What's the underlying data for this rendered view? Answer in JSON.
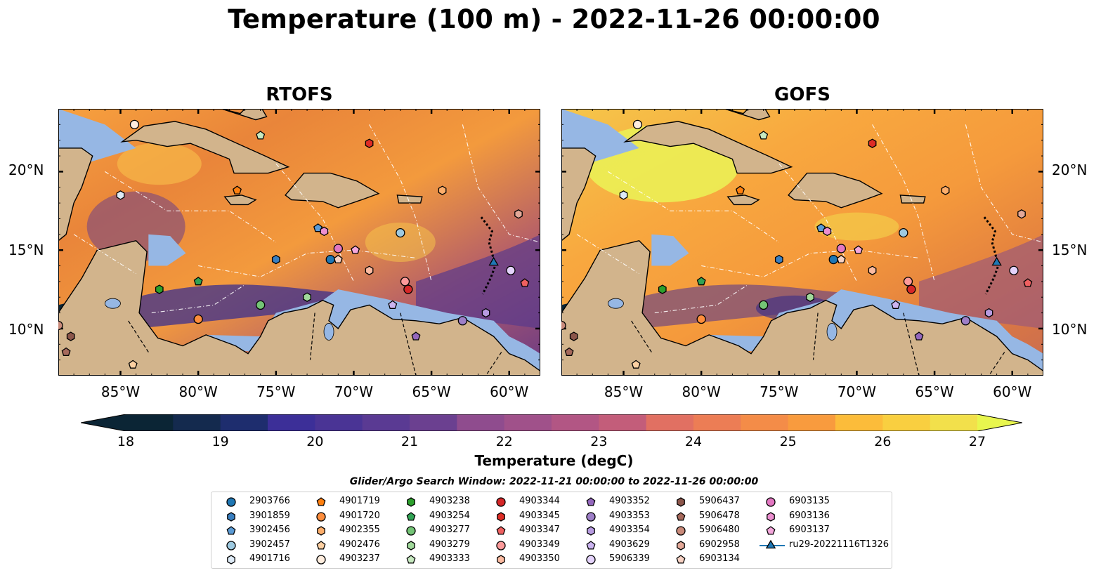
{
  "title": "Temperature (100 m) - 2022-11-26 00:00:00",
  "panels": [
    {
      "title": "RTOFS"
    },
    {
      "title": "GOFS"
    }
  ],
  "map": {
    "lon_range": [
      -89,
      -58
    ],
    "lat_range": [
      7,
      24
    ],
    "lat_ticks": [
      "20°N",
      "15°N",
      "10°N"
    ],
    "lon_ticks": [
      "85°W",
      "80°W",
      "75°W",
      "70°W",
      "65°W",
      "60°W"
    ],
    "colors": {
      "land": "#d2b48c",
      "shallow_water": "#96b7e4",
      "deep_ocean": "#0b2535",
      "warm": "#f59a3c",
      "hot": "#f2d54a"
    }
  },
  "colorbar": {
    "label": "Temperature (degC)",
    "min": 18,
    "max": 27,
    "ticks": [
      "18",
      "19",
      "20",
      "21",
      "22",
      "23",
      "24",
      "25",
      "26",
      "27"
    ],
    "colormap": "thermal",
    "extend": "both"
  },
  "legend": {
    "title": "Glider/Argo Search Window: 2022-11-21 00:00:00 to 2022-11-26 00:00:00",
    "items": [
      {
        "id": "2903766",
        "marker": "circle",
        "color": "#1f77b4",
        "lon": -71.5,
        "lat": 14.4
      },
      {
        "id": "3901859",
        "marker": "hexagon",
        "color": "#3a7fc0",
        "lon": -75.0,
        "lat": 14.4
      },
      {
        "id": "3902456",
        "marker": "pentagon",
        "color": "#5b9bd5",
        "lon": -72.3,
        "lat": 16.4
      },
      {
        "id": "3902457",
        "marker": "circle",
        "color": "#9ecae1",
        "lon": -67.0,
        "lat": 16.1
      },
      {
        "id": "4901716",
        "marker": "hexagon",
        "color": "#deebf7",
        "lon": -85.0,
        "lat": 18.5
      },
      {
        "id": "4901719",
        "marker": "pentagon",
        "color": "#ff7f0e",
        "lon": -77.5,
        "lat": 18.8
      },
      {
        "id": "4901720",
        "marker": "circle",
        "color": "#fd8d3c",
        "lon": -80.0,
        "lat": 10.6
      },
      {
        "id": "4902355",
        "marker": "hexagon",
        "color": "#fdae6b",
        "lon": -64.3,
        "lat": 18.8
      },
      {
        "id": "4902476",
        "marker": "pentagon",
        "color": "#fdd0a2",
        "lon": -84.2,
        "lat": 7.7
      },
      {
        "id": "4903237",
        "marker": "circle",
        "color": "#feedde",
        "lon": -84.1,
        "lat": 23.0
      },
      {
        "id": "4903238",
        "marker": "hexagon",
        "color": "#2ca02c",
        "lon": -82.5,
        "lat": 12.5
      },
      {
        "id": "4903254",
        "marker": "pentagon",
        "color": "#31a354",
        "lon": -80.0,
        "lat": 13.0
      },
      {
        "id": "4903277",
        "marker": "circle",
        "color": "#74c476",
        "lon": -76.0,
        "lat": 11.5
      },
      {
        "id": "4903279",
        "marker": "hexagon",
        "color": "#a1d99b",
        "lon": -73.0,
        "lat": 12.0
      },
      {
        "id": "4903333",
        "marker": "pentagon",
        "color": "#c7e9c0",
        "lon": -76.0,
        "lat": 22.3
      },
      {
        "id": "4903344",
        "marker": "circle",
        "color": "#d62728",
        "lon": -66.5,
        "lat": 12.5
      },
      {
        "id": "4903345",
        "marker": "hexagon",
        "color": "#de2d26",
        "lon": -69.0,
        "lat": 21.8
      },
      {
        "id": "4903347",
        "marker": "pentagon",
        "color": "#ef6060",
        "lon": -59.0,
        "lat": 12.9
      },
      {
        "id": "4903349",
        "marker": "circle",
        "color": "#fc9a9a",
        "lon": -66.7,
        "lat": 13.0
      },
      {
        "id": "4903350",
        "marker": "hexagon",
        "color": "#fcbba1",
        "lon": -69.0,
        "lat": 13.7
      },
      {
        "id": "4903352",
        "marker": "pentagon",
        "color": "#9467bd",
        "lon": -66.0,
        "lat": 9.5
      },
      {
        "id": "4903353",
        "marker": "circle",
        "color": "#9e7fc8",
        "lon": -63.0,
        "lat": 10.5
      },
      {
        "id": "4903354",
        "marker": "hexagon",
        "color": "#b79be0",
        "lon": -61.5,
        "lat": 11.0
      },
      {
        "id": "4903629",
        "marker": "pentagon",
        "color": "#cbb4f0",
        "lon": -67.5,
        "lat": 11.5
      },
      {
        "id": "5906339",
        "marker": "circle",
        "color": "#e4d3fb",
        "lon": -59.9,
        "lat": 13.7
      },
      {
        "id": "5906437",
        "marker": "hexagon",
        "color": "#8c564b",
        "lon": -88.2,
        "lat": 9.5
      },
      {
        "id": "5906478",
        "marker": "pentagon",
        "color": "#a6695c",
        "lon": -88.5,
        "lat": 8.5
      },
      {
        "id": "5906480",
        "marker": "circle",
        "color": "#c98a7a",
        "lon": -89.0,
        "lat": 10.2
      },
      {
        "id": "6902958",
        "marker": "hexagon",
        "color": "#e3a898",
        "lon": -59.4,
        "lat": 17.3
      },
      {
        "id": "6903134",
        "marker": "pentagon",
        "color": "#f7d2c4",
        "lon": -71.0,
        "lat": 14.4
      },
      {
        "id": "6903135",
        "marker": "circle",
        "color": "#e377c2",
        "lon": -71.0,
        "lat": 15.1
      },
      {
        "id": "6903136",
        "marker": "hexagon",
        "color": "#ec8fd0",
        "lon": -71.9,
        "lat": 16.2
      },
      {
        "id": "6903137",
        "marker": "pentagon",
        "color": "#f4a7dc",
        "lon": -69.9,
        "lat": 15.0
      },
      {
        "id": "ru29-20221116T1326",
        "marker": "triangle",
        "color": "#1f77b4",
        "lon": -61.0,
        "lat": 14.2
      }
    ]
  }
}
